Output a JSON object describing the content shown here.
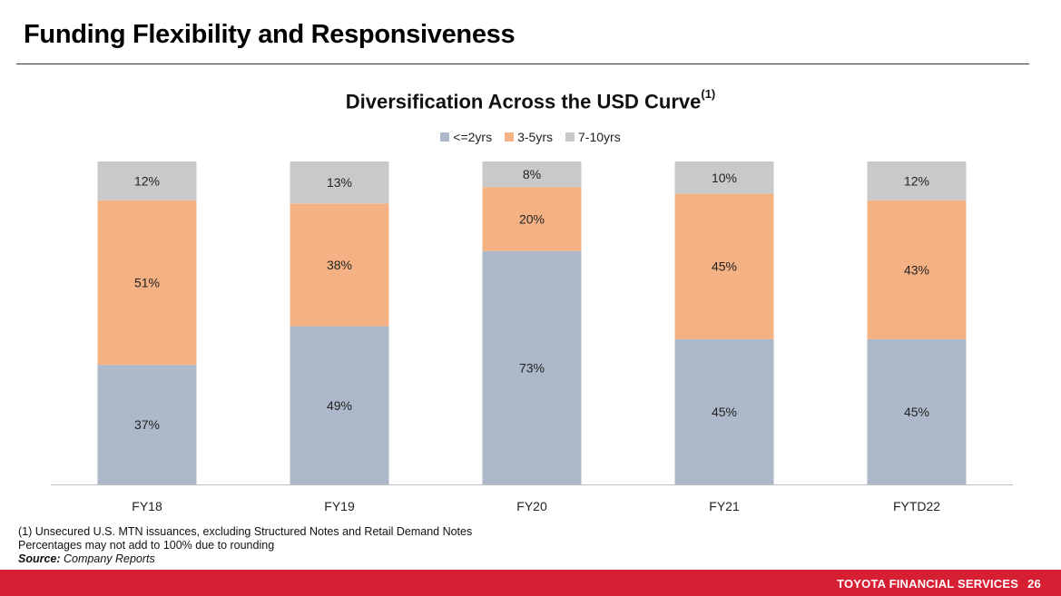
{
  "page": {
    "title": "Funding Flexibility and Responsiveness"
  },
  "chart_data": {
    "type": "bar",
    "stacked": true,
    "title": "Diversification Across the USD Curve",
    "title_superscript": "(1)",
    "categories": [
      "FY18",
      "FY19",
      "FY20",
      "FY21",
      "FYTD22"
    ],
    "series": [
      {
        "name": "<=2yrs",
        "color": "#adb9ca",
        "values": [
          37,
          49,
          73,
          45,
          45
        ],
        "labels": [
          "37%",
          "49%",
          "73%",
          "45%",
          "45%"
        ]
      },
      {
        "name": "3-5yrs",
        "color": "#f4b183",
        "values": [
          51,
          38,
          20,
          45,
          43
        ],
        "labels": [
          "51%",
          "38%",
          "20%",
          "45%",
          "43%"
        ]
      },
      {
        "name": "7-10yrs",
        "color": "#c9c9c9",
        "values": [
          12,
          13,
          8,
          10,
          12
        ],
        "labels": [
          "12%",
          "13%",
          "8%",
          "10%",
          "12%"
        ]
      }
    ],
    "ylim": [
      0,
      100
    ],
    "legend_position": "top-center",
    "grid": false
  },
  "footnotes": {
    "note1": "(1)  Unsecured U.S. MTN issuances, excluding Structured Notes and Retail Demand Notes",
    "note2": "Percentages may not add to 100% due to rounding",
    "source_label": "Source:",
    "source_text": " Company Reports"
  },
  "footer": {
    "brand": "TOYOTA FINANCIAL SERVICES",
    "page_number": "26"
  }
}
